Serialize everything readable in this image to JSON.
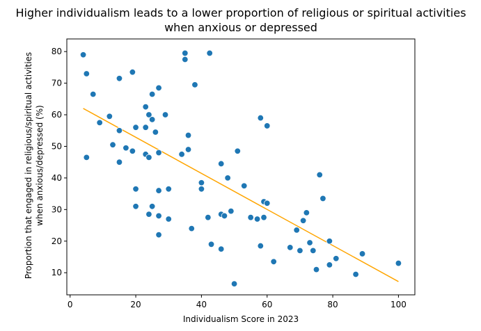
{
  "chart_data": {
    "type": "scatter",
    "title": "Higher individualism leads to a lower proportion of religious or spiritual activities",
    "title_line2": "when anxious or depressed",
    "xlabel": "Individualism Score in 2023",
    "ylabel": "Proportion that engaged in religious/spiritual activities",
    "ylabel_line2": "when anxious/depressed (%)",
    "xlim": [
      -1,
      105
    ],
    "ylim": [
      3,
      84
    ],
    "xticks": [
      0,
      20,
      40,
      60,
      80,
      100
    ],
    "yticks": [
      10,
      20,
      30,
      40,
      50,
      60,
      70,
      80
    ],
    "grid": false,
    "point_color": "#1f77b4",
    "trendline_color": "#ffa500",
    "trendline": {
      "x": [
        4,
        100
      ],
      "y": [
        62,
        7.2
      ]
    },
    "points": [
      [
        4,
        79
      ],
      [
        5,
        73
      ],
      [
        5,
        46.5
      ],
      [
        7,
        66.5
      ],
      [
        9,
        57.5
      ],
      [
        12,
        59.5
      ],
      [
        13,
        50.5
      ],
      [
        15,
        71.5
      ],
      [
        15,
        55
      ],
      [
        15,
        45
      ],
      [
        17,
        49.5
      ],
      [
        19,
        73.5
      ],
      [
        19,
        48.5
      ],
      [
        20,
        56
      ],
      [
        20,
        36.5
      ],
      [
        20,
        31
      ],
      [
        23,
        62.5
      ],
      [
        23,
        56
      ],
      [
        23,
        47.5
      ],
      [
        24,
        46.5
      ],
      [
        24,
        60
      ],
      [
        24,
        28.5
      ],
      [
        25,
        66.5
      ],
      [
        25,
        58.5
      ],
      [
        25,
        31
      ],
      [
        26,
        54.5
      ],
      [
        27,
        68.5
      ],
      [
        27,
        48
      ],
      [
        27,
        36
      ],
      [
        27,
        28
      ],
      [
        27,
        22
      ],
      [
        29,
        60
      ],
      [
        30,
        36.5
      ],
      [
        30,
        27
      ],
      [
        34,
        47.5
      ],
      [
        35,
        79.5
      ],
      [
        35,
        77.5
      ],
      [
        36,
        53.5
      ],
      [
        36,
        49
      ],
      [
        37,
        24
      ],
      [
        38,
        69.5
      ],
      [
        40,
        38.5
      ],
      [
        40,
        36.5
      ],
      [
        42,
        27.5
      ],
      [
        42.5,
        79.5
      ],
      [
        43,
        19
      ],
      [
        46,
        44.5
      ],
      [
        46,
        28.5
      ],
      [
        46,
        17.5
      ],
      [
        47,
        28
      ],
      [
        48,
        40
      ],
      [
        49,
        29.5
      ],
      [
        50,
        6.5
      ],
      [
        51,
        48.5
      ],
      [
        53,
        37.5
      ],
      [
        55,
        27.5
      ],
      [
        57,
        27
      ],
      [
        58,
        59
      ],
      [
        58,
        18.5
      ],
      [
        59,
        32.5
      ],
      [
        59,
        27.5
      ],
      [
        60,
        56.5
      ],
      [
        60,
        32
      ],
      [
        62,
        13.5
      ],
      [
        67,
        18
      ],
      [
        69,
        23.5
      ],
      [
        70,
        17
      ],
      [
        71,
        26.5
      ],
      [
        72,
        29
      ],
      [
        73,
        19.5
      ],
      [
        74,
        17
      ],
      [
        75,
        11
      ],
      [
        76,
        41
      ],
      [
        77,
        33.5
      ],
      [
        79,
        20
      ],
      [
        79,
        12.5
      ],
      [
        81,
        14.5
      ],
      [
        87,
        9.5
      ],
      [
        89,
        16
      ],
      [
        100,
        13
      ]
    ]
  }
}
